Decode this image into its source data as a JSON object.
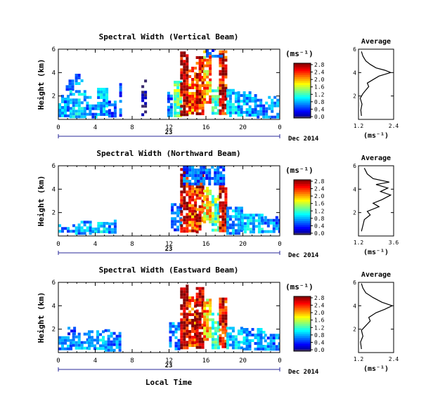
{
  "figure": {
    "common_xlabel": "Local Time",
    "date_label": "Dec 2014",
    "day_label": "23"
  },
  "chart_data": [
    {
      "type": "heatmap",
      "title": "Spectral Width (Vertical Beam)",
      "ylabel": "Height (km)",
      "xlabel": "Local Time",
      "xticks": [
        "0",
        "4",
        "8",
        "12",
        "16",
        "20",
        "0"
      ],
      "yticks": [
        "2",
        "4",
        "6"
      ],
      "xlim": [
        0,
        24
      ],
      "ylim": [
        0,
        6
      ],
      "grid": false,
      "colorbar": {
        "unit": "(ms⁻¹)",
        "ticks": [
          "0.0",
          "0.4",
          "0.8",
          "1.2",
          "1.6",
          "2.0",
          "2.4",
          "2.8"
        ],
        "range": [
          0.0,
          2.8
        ]
      },
      "cells": [
        {
          "x": [
            0.0,
            1.2
          ],
          "y": [
            0.3,
            2.1
          ],
          "v": 0.75
        },
        {
          "x": [
            0.8,
            1.6
          ],
          "y": [
            2.6,
            3.4
          ],
          "v": 0.6
        },
        {
          "x": [
            1.2,
            3.0
          ],
          "y": [
            0.3,
            2.5
          ],
          "v": 0.9
        },
        {
          "x": [
            1.8,
            2.6
          ],
          "y": [
            3.0,
            3.9
          ],
          "v": 0.7
        },
        {
          "x": [
            3.0,
            4.2
          ],
          "y": [
            0.3,
            2.0
          ],
          "v": 0.7
        },
        {
          "x": [
            4.2,
            5.4
          ],
          "y": [
            0.3,
            2.7
          ],
          "v": 0.85
        },
        {
          "x": [
            5.4,
            6.3
          ],
          "y": [
            0.3,
            1.6
          ],
          "v": 0.6
        },
        {
          "x": [
            6.6,
            6.9
          ],
          "y": [
            0.3,
            3.1
          ],
          "v": 0.5
        },
        {
          "x": [
            9.0,
            9.6
          ],
          "y": [
            0.4,
            3.4
          ],
          "v": 0.05
        },
        {
          "x": [
            11.8,
            12.3
          ],
          "y": [
            0.4,
            2.6
          ],
          "v": 0.6
        },
        {
          "x": [
            12.5,
            13.2
          ],
          "y": [
            0.4,
            3.3
          ],
          "v": 1.4
        },
        {
          "x": [
            13.2,
            14.1
          ],
          "y": [
            0.4,
            5.8
          ],
          "v": 2.7
        },
        {
          "x": [
            14.1,
            14.9
          ],
          "y": [
            0.6,
            4.5
          ],
          "v": 2.2
        },
        {
          "x": [
            14.9,
            15.7
          ],
          "y": [
            0.4,
            5.4
          ],
          "v": 2.5
        },
        {
          "x": [
            15.7,
            16.6
          ],
          "y": [
            1.5,
            5.9
          ],
          "v": 2.0
        },
        {
          "x": [
            16.6,
            17.4
          ],
          "y": [
            0.4,
            2.8
          ],
          "v": 1.2
        },
        {
          "x": [
            17.4,
            18.2
          ],
          "y": [
            0.4,
            5.9
          ],
          "v": 2.5
        },
        {
          "x": [
            18.2,
            19.4
          ],
          "y": [
            0.3,
            2.6
          ],
          "v": 0.9
        },
        {
          "x": [
            19.4,
            21.5
          ],
          "y": [
            0.3,
            2.4
          ],
          "v": 0.8
        },
        {
          "x": [
            21.5,
            24.0
          ],
          "y": [
            0.3,
            2.0
          ],
          "v": 0.7
        },
        {
          "x": [
            16.0,
            17.6
          ],
          "y": [
            5.4,
            6.0
          ],
          "v": 0.5
        }
      ],
      "profile": {
        "title": "Average",
        "xlabel": "(ms⁻¹)",
        "xticks": [
          "1.2",
          "2.4"
        ],
        "xlim": [
          1.2,
          2.4
        ],
        "yticks": [
          "2",
          "4",
          "6"
        ],
        "ylim": [
          0,
          6
        ],
        "points": [
          [
            1.3,
            0.3
          ],
          [
            1.28,
            0.8
          ],
          [
            1.32,
            1.3
          ],
          [
            1.26,
            1.8
          ],
          [
            1.35,
            2.2
          ],
          [
            1.45,
            2.5
          ],
          [
            1.55,
            2.8
          ],
          [
            1.5,
            3.1
          ],
          [
            1.7,
            3.4
          ],
          [
            1.9,
            3.7
          ],
          [
            2.3,
            4.0
          ],
          [
            2.1,
            4.2
          ],
          [
            1.8,
            4.4
          ],
          [
            1.6,
            4.7
          ],
          [
            1.45,
            5.0
          ],
          [
            1.35,
            5.4
          ],
          [
            1.3,
            5.8
          ]
        ]
      }
    },
    {
      "type": "heatmap",
      "title": "Spectral Width (Northward Beam)",
      "ylabel": "Height (km)",
      "xlabel": "Local Time",
      "xticks": [
        "0",
        "4",
        "8",
        "12",
        "16",
        "20",
        "0"
      ],
      "yticks": [
        "2",
        "4",
        "6"
      ],
      "xlim": [
        0,
        24
      ],
      "ylim": [
        0,
        6
      ],
      "grid": false,
      "colorbar": {
        "unit": "(ms⁻¹)",
        "ticks": [
          "0.0",
          "0.4",
          "0.8",
          "1.2",
          "1.6",
          "2.0",
          "2.4",
          "2.8"
        ],
        "range": [
          0.0,
          2.8
        ]
      },
      "cells": [
        {
          "x": [
            0.0,
            1.8
          ],
          "y": [
            0.3,
            1.0
          ],
          "v": 0.7
        },
        {
          "x": [
            1.8,
            3.6
          ],
          "y": [
            0.3,
            1.3
          ],
          "v": 0.8
        },
        {
          "x": [
            3.6,
            5.4
          ],
          "y": [
            0.3,
            1.2
          ],
          "v": 0.9
        },
        {
          "x": [
            5.4,
            6.2
          ],
          "y": [
            0.3,
            1.4
          ],
          "v": 0.7
        },
        {
          "x": [
            12.2,
            13.2
          ],
          "y": [
            0.4,
            2.8
          ],
          "v": 0.6
        },
        {
          "x": [
            13.2,
            14.1
          ],
          "y": [
            0.4,
            5.8
          ],
          "v": 2.6
        },
        {
          "x": [
            14.1,
            14.9
          ],
          "y": [
            0.5,
            4.4
          ],
          "v": 2.3
        },
        {
          "x": [
            14.9,
            15.7
          ],
          "y": [
            0.4,
            5.5
          ],
          "v": 2.4
        },
        {
          "x": [
            15.7,
            16.6
          ],
          "y": [
            1.2,
            4.2
          ],
          "v": 1.8
        },
        {
          "x": [
            16.6,
            17.4
          ],
          "y": [
            0.5,
            3.5
          ],
          "v": 1.3
        },
        {
          "x": [
            17.4,
            18.2
          ],
          "y": [
            0.4,
            4.4
          ],
          "v": 2.6
        },
        {
          "x": [
            13.5,
            17.8
          ],
          "y": [
            4.4,
            6.0
          ],
          "v": 0.6
        },
        {
          "x": [
            18.2,
            19.8
          ],
          "y": [
            0.3,
            2.5
          ],
          "v": 0.8
        },
        {
          "x": [
            19.8,
            22.0
          ],
          "y": [
            0.3,
            1.9
          ],
          "v": 0.9
        },
        {
          "x": [
            22.0,
            24.0
          ],
          "y": [
            0.3,
            1.7
          ],
          "v": 0.7
        }
      ],
      "profile": {
        "title": "Average",
        "xlabel": "(ms⁻¹)",
        "xticks": [
          "1.2",
          "3.6"
        ],
        "xlim": [
          1.2,
          3.6
        ],
        "yticks": [
          "2",
          "4",
          "6"
        ],
        "ylim": [
          0,
          6
        ],
        "points": [
          [
            1.4,
            0.4
          ],
          [
            1.5,
            0.9
          ],
          [
            1.6,
            1.4
          ],
          [
            2.0,
            1.8
          ],
          [
            1.8,
            2.1
          ],
          [
            2.6,
            2.5
          ],
          [
            2.2,
            2.8
          ],
          [
            2.8,
            3.1
          ],
          [
            3.4,
            3.5
          ],
          [
            2.7,
            3.8
          ],
          [
            3.2,
            4.1
          ],
          [
            2.4,
            4.4
          ],
          [
            3.3,
            4.6
          ],
          [
            2.2,
            4.9
          ],
          [
            1.8,
            5.3
          ],
          [
            1.6,
            5.8
          ]
        ]
      }
    },
    {
      "type": "heatmap",
      "title": "Spectral Width (Eastward Beam)",
      "ylabel": "Height (km)",
      "xlabel": "Local Time",
      "xticks": [
        "0",
        "4",
        "8",
        "12",
        "16",
        "20",
        "0"
      ],
      "yticks": [
        "2",
        "4",
        "6"
      ],
      "xlim": [
        0,
        24
      ],
      "ylim": [
        0,
        6
      ],
      "grid": false,
      "colorbar": {
        "unit": "(ms⁻¹)",
        "ticks": [
          "0.0",
          "0.4",
          "0.8",
          "1.2",
          "1.6",
          "2.0",
          "2.4",
          "2.8"
        ],
        "range": [
          0.0,
          2.8
        ]
      },
      "cells": [
        {
          "x": [
            0.0,
            1.5
          ],
          "y": [
            0.3,
            1.4
          ],
          "v": 0.75
        },
        {
          "x": [
            1.0,
            1.8
          ],
          "y": [
            1.6,
            2.2
          ],
          "v": 0.5
        },
        {
          "x": [
            1.5,
            3.2
          ],
          "y": [
            0.3,
            1.7
          ],
          "v": 0.8
        },
        {
          "x": [
            3.2,
            5.0
          ],
          "y": [
            0.3,
            1.9
          ],
          "v": 0.85
        },
        {
          "x": [
            5.0,
            6.6
          ],
          "y": [
            0.3,
            2.0
          ],
          "v": 0.7
        },
        {
          "x": [
            12.0,
            13.2
          ],
          "y": [
            0.4,
            2.6
          ],
          "v": 0.7
        },
        {
          "x": [
            13.2,
            14.1
          ],
          "y": [
            0.4,
            5.8
          ],
          "v": 2.7
        },
        {
          "x": [
            14.1,
            14.9
          ],
          "y": [
            0.5,
            4.8
          ],
          "v": 2.4
        },
        {
          "x": [
            14.9,
            15.7
          ],
          "y": [
            0.4,
            5.6
          ],
          "v": 2.6
        },
        {
          "x": [
            15.7,
            16.6
          ],
          "y": [
            1.0,
            4.6
          ],
          "v": 1.9
        },
        {
          "x": [
            16.6,
            17.4
          ],
          "y": [
            0.4,
            3.4
          ],
          "v": 1.2
        },
        {
          "x": [
            17.4,
            18.2
          ],
          "y": [
            0.4,
            4.7
          ],
          "v": 2.5
        },
        {
          "x": [
            18.2,
            20.0
          ],
          "y": [
            0.3,
            2.2
          ],
          "v": 0.9
        },
        {
          "x": [
            20.0,
            22.3
          ],
          "y": [
            0.3,
            2.1
          ],
          "v": 0.8
        },
        {
          "x": [
            22.3,
            24.0
          ],
          "y": [
            0.3,
            1.6
          ],
          "v": 0.7
        }
      ],
      "profile": {
        "title": "Average",
        "xlabel": "(ms⁻¹)",
        "xticks": [
          "1.2",
          "2.4"
        ],
        "xlim": [
          1.2,
          2.4
        ],
        "yticks": [
          "2",
          "4",
          "6"
        ],
        "ylim": [
          0,
          6
        ],
        "points": [
          [
            1.3,
            0.3
          ],
          [
            1.27,
            0.9
          ],
          [
            1.35,
            1.4
          ],
          [
            1.3,
            1.9
          ],
          [
            1.45,
            2.3
          ],
          [
            1.6,
            2.7
          ],
          [
            1.55,
            3.0
          ],
          [
            1.8,
            3.4
          ],
          [
            2.1,
            3.7
          ],
          [
            2.35,
            4.0
          ],
          [
            2.0,
            4.3
          ],
          [
            1.7,
            4.7
          ],
          [
            1.45,
            5.1
          ],
          [
            1.35,
            5.5
          ],
          [
            1.3,
            5.9
          ]
        ]
      }
    }
  ]
}
